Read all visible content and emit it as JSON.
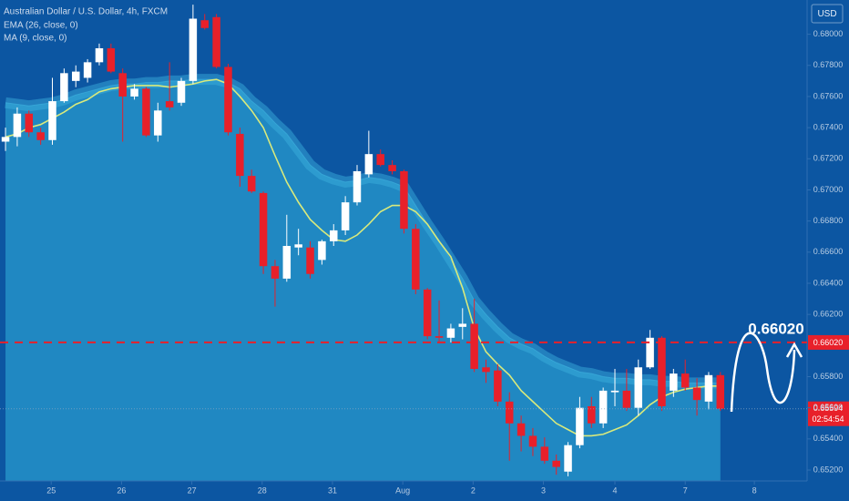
{
  "chart_data": {
    "type": "candlestick",
    "title": "Australian Dollar / U.S. Dollar, 4h, FXCM",
    "currency": "USD",
    "up_color": "#ffffff",
    "down_color": "#e8202a",
    "xlim": [
      -0.47,
      68.4
    ],
    "ylim": [
      0.6513,
      0.6822
    ],
    "grid": false,
    "yticks": [
      {
        "value": 0.652,
        "label": "0.65200"
      },
      {
        "value": 0.654,
        "label": "0.65400"
      },
      {
        "value": 0.656,
        "label": "0.65600"
      },
      {
        "value": 0.658,
        "label": "0.65800"
      },
      {
        "value": 0.662,
        "label": "0.66200"
      },
      {
        "value": 0.664,
        "label": "0.66400"
      },
      {
        "value": 0.666,
        "label": "0.66600"
      },
      {
        "value": 0.668,
        "label": "0.66800"
      },
      {
        "value": 0.67,
        "label": "0.67000"
      },
      {
        "value": 0.672,
        "label": "0.67200"
      },
      {
        "value": 0.674,
        "label": "0.67400"
      },
      {
        "value": 0.676,
        "label": "0.67600"
      },
      {
        "value": 0.678,
        "label": "0.67800"
      },
      {
        "value": 0.68,
        "label": "0.68000"
      }
    ],
    "xticks": [
      {
        "value": 3.9,
        "label": "25"
      },
      {
        "value": 9.9,
        "label": "26"
      },
      {
        "value": 15.9,
        "label": "27"
      },
      {
        "value": 21.9,
        "label": "28"
      },
      {
        "value": 27.9,
        "label": "31"
      },
      {
        "value": 33.9,
        "label": "Aug"
      },
      {
        "value": 39.9,
        "label": "2"
      },
      {
        "value": 45.9,
        "label": "3"
      },
      {
        "value": 52.0,
        "label": "4"
      },
      {
        "value": 58.0,
        "label": "7"
      },
      {
        "value": 63.9,
        "label": "8"
      }
    ],
    "candles": {
      "x": [
        0,
        1,
        2,
        3,
        4,
        5,
        6,
        7,
        8,
        9,
        10,
        11,
        12,
        13,
        14,
        15,
        16,
        17,
        18,
        19,
        20,
        21,
        22,
        23,
        24,
        25,
        26,
        27,
        28,
        29,
        30,
        31,
        32,
        33,
        34,
        35,
        36,
        37,
        38,
        39,
        40,
        41,
        42,
        43,
        44,
        45,
        46,
        47,
        48,
        49,
        50,
        51,
        52,
        53,
        54,
        55,
        56,
        57,
        58,
        59,
        60,
        61
      ],
      "open": [
        0.6731,
        0.6734,
        0.6749,
        0.6737,
        0.6732,
        0.6757,
        0.677,
        0.6772,
        0.6782,
        0.6791,
        0.6775,
        0.676,
        0.6765,
        0.6735,
        0.6757,
        0.6756,
        0.677,
        0.6809,
        0.6811,
        0.6779,
        0.6736,
        0.6709,
        0.6698,
        0.6651,
        0.6643,
        0.6663,
        0.6663,
        0.6655,
        0.6667,
        0.6674,
        0.6692,
        0.671,
        0.6723,
        0.6716,
        0.6712,
        0.6675,
        0.6636,
        0.6606,
        0.6605,
        0.6612,
        0.6614,
        0.6586,
        0.6584,
        0.6564,
        0.655,
        0.6542,
        0.6535,
        0.6526,
        0.6519,
        0.6536,
        0.6561,
        0.655,
        0.657,
        0.6571,
        0.656,
        0.6586,
        0.6605,
        0.6571,
        0.6582,
        0.6573,
        0.6564,
        0.6581
      ],
      "high": [
        0.674,
        0.6753,
        0.6751,
        0.674,
        0.6772,
        0.6778,
        0.678,
        0.6784,
        0.6794,
        0.6794,
        0.6778,
        0.6768,
        0.6766,
        0.6756,
        0.6782,
        0.6772,
        0.6819,
        0.6813,
        0.6813,
        0.6781,
        0.674,
        0.6713,
        0.6699,
        0.6655,
        0.6684,
        0.6675,
        0.6667,
        0.6668,
        0.6678,
        0.6696,
        0.6716,
        0.6738,
        0.6726,
        0.6719,
        0.6713,
        0.6678,
        0.6637,
        0.6629,
        0.6614,
        0.6624,
        0.663,
        0.6591,
        0.6588,
        0.657,
        0.6555,
        0.6547,
        0.6541,
        0.653,
        0.6538,
        0.6567,
        0.6567,
        0.6573,
        0.6585,
        0.6585,
        0.6591,
        0.661,
        0.6606,
        0.6585,
        0.6591,
        0.6579,
        0.6583,
        0.6583
      ],
      "low": [
        0.6725,
        0.6728,
        0.6734,
        0.6729,
        0.6729,
        0.6756,
        0.6766,
        0.6769,
        0.678,
        0.6775,
        0.6731,
        0.6758,
        0.6734,
        0.6731,
        0.6751,
        0.6754,
        0.6768,
        0.6803,
        0.6778,
        0.6735,
        0.6702,
        0.6698,
        0.6646,
        0.6625,
        0.6641,
        0.6658,
        0.6643,
        0.6652,
        0.6664,
        0.6671,
        0.669,
        0.6708,
        0.6715,
        0.671,
        0.6672,
        0.6633,
        0.6604,
        0.6602,
        0.6602,
        0.6604,
        0.6583,
        0.6576,
        0.6561,
        0.6526,
        0.6532,
        0.6529,
        0.6524,
        0.6517,
        0.6516,
        0.6534,
        0.6547,
        0.6547,
        0.6561,
        0.6558,
        0.6555,
        0.6585,
        0.6558,
        0.6567,
        0.6571,
        0.6555,
        0.6559,
        0.6558
      ],
      "close": [
        0.6734,
        0.6749,
        0.6737,
        0.6732,
        0.6757,
        0.6775,
        0.6776,
        0.6782,
        0.6791,
        0.6776,
        0.676,
        0.6765,
        0.6735,
        0.6751,
        0.6753,
        0.677,
        0.681,
        0.6804,
        0.6779,
        0.6737,
        0.6709,
        0.6699,
        0.6651,
        0.6643,
        0.6664,
        0.6665,
        0.6646,
        0.6667,
        0.6674,
        0.6692,
        0.6712,
        0.6723,
        0.6716,
        0.6712,
        0.6675,
        0.6636,
        0.6606,
        0.6605,
        0.6611,
        0.6614,
        0.6585,
        0.6583,
        0.6564,
        0.655,
        0.6542,
        0.6535,
        0.6526,
        0.6522,
        0.6536,
        0.656,
        0.655,
        0.6571,
        0.6571,
        0.656,
        0.6586,
        0.6605,
        0.6561,
        0.6582,
        0.6573,
        0.6565,
        0.6581,
        0.65594
      ]
    },
    "indicators": [
      {
        "name": "EMA (26, close, 0)",
        "style": "area",
        "color": "#3fb3e0",
        "values": [
          0.6756,
          0.6755,
          0.6754,
          0.6755,
          0.6756,
          0.6758,
          0.6761,
          0.6763,
          0.6765,
          0.6767,
          0.6768,
          0.6768,
          0.6769,
          0.6769,
          0.677,
          0.677,
          0.6771,
          0.6771,
          0.6771,
          0.6769,
          0.6765,
          0.6757,
          0.6751,
          0.6743,
          0.6736,
          0.6726,
          0.6716,
          0.671,
          0.6707,
          0.6705,
          0.6706,
          0.6708,
          0.6707,
          0.6705,
          0.6702,
          0.669,
          0.6678,
          0.6667,
          0.6655,
          0.6643,
          0.6629,
          0.662,
          0.6612,
          0.6605,
          0.6601,
          0.6598,
          0.6593,
          0.6589,
          0.6586,
          0.6583,
          0.6582,
          0.658,
          0.6579,
          0.6579,
          0.6578,
          0.6578,
          0.6577,
          0.6577,
          0.6576,
          0.6576,
          0.6576,
          0.6576
        ]
      },
      {
        "name": "MA (9, close, 0)",
        "style": "line",
        "color": "#d9ea7c",
        "values": [
          0.6734,
          0.6736,
          0.674,
          0.6742,
          0.6746,
          0.675,
          0.6755,
          0.6758,
          0.6763,
          0.6765,
          0.6766,
          0.6767,
          0.6767,
          0.6767,
          0.6766,
          0.6767,
          0.6768,
          0.677,
          0.6771,
          0.6768,
          0.676,
          0.6751,
          0.674,
          0.6722,
          0.6705,
          0.6692,
          0.6681,
          0.6674,
          0.6668,
          0.6667,
          0.6671,
          0.6678,
          0.6686,
          0.669,
          0.669,
          0.6686,
          0.6678,
          0.6667,
          0.6657,
          0.6637,
          0.6611,
          0.6596,
          0.6588,
          0.6581,
          0.6571,
          0.6564,
          0.6557,
          0.655,
          0.6546,
          0.6542,
          0.6542,
          0.6543,
          0.6546,
          0.6549,
          0.6555,
          0.6562,
          0.6567,
          0.657,
          0.6572,
          0.6573,
          0.6574,
          0.6574
        ]
      }
    ],
    "hline": {
      "value": 0.6602,
      "label": "0.66020",
      "color": "#e8202a"
    },
    "annotation": "0.66020",
    "last_price": {
      "value": 0.65594,
      "label": "0.65594"
    },
    "countdown": "02:54:54"
  }
}
